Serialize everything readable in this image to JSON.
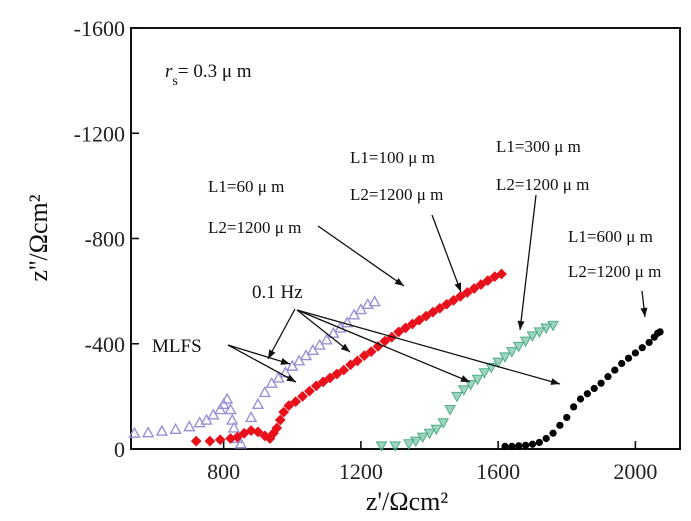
{
  "chart_data": {
    "type": "scatter",
    "xlabel": "z'/Ωcm²",
    "ylabel": "z''/Ωcm²",
    "xlim": [
      530,
      2130
    ],
    "ylim": [
      0,
      -1600
    ],
    "x_ticks": [
      "800",
      "1200",
      "1600",
      "2000"
    ],
    "y_ticks": [
      "-1600",
      "-1200",
      "-800",
      "-400",
      "0"
    ],
    "x_tick_values": [
      800,
      1200,
      1600,
      2000
    ],
    "y_tick_values": [
      -1600,
      -1200,
      -800,
      -400,
      0
    ],
    "grid": false,
    "annotations": {
      "rs": "r",
      "rs_sub": "s",
      "rs_value": "= 0.3 μ m",
      "hz": "0.1 Hz",
      "mlfs": "MLFS",
      "label_sets": [
        {
          "l1": "L1=60 μ m",
          "l2": "L2=1200 μ m"
        },
        {
          "l1": "L1=100 μ m",
          "l2": "L2=1200 μ m"
        },
        {
          "l1": "L1=300 μ m",
          "l2": "L2=1200 μ m"
        },
        {
          "l1": "L1=600 μ m",
          "l2": "L2=1200 μ m"
        }
      ]
    },
    "series": [
      {
        "color": "#9c8fd6",
        "marker": "triangle",
        "points": [
          [
            540,
            -60
          ],
          [
            580,
            -62
          ],
          [
            620,
            -68
          ],
          [
            660,
            -75
          ],
          [
            700,
            -85
          ],
          [
            730,
            -100
          ],
          [
            750,
            -110
          ],
          [
            770,
            -130
          ],
          [
            790,
            -150
          ],
          [
            800,
            -170
          ],
          [
            810,
            -190
          ],
          [
            820,
            -150
          ],
          [
            825,
            -110
          ],
          [
            830,
            -80
          ],
          [
            840,
            -40
          ],
          [
            850,
            -20
          ],
          [
            880,
            -120
          ],
          [
            900,
            -170
          ],
          [
            920,
            -215
          ],
          [
            940,
            -250
          ],
          [
            960,
            -270
          ],
          [
            980,
            -290
          ],
          [
            1000,
            -315
          ],
          [
            1020,
            -335
          ],
          [
            1040,
            -355
          ],
          [
            1060,
            -375
          ],
          [
            1080,
            -395
          ],
          [
            1100,
            -415
          ],
          [
            1120,
            -440
          ],
          [
            1140,
            -460
          ],
          [
            1160,
            -480
          ],
          [
            1180,
            -510
          ],
          [
            1200,
            -530
          ],
          [
            1220,
            -550
          ],
          [
            1240,
            -560
          ]
        ]
      },
      {
        "color": "#e8101a",
        "marker": "square",
        "points": [
          [
            720,
            -30
          ],
          [
            760,
            -30
          ],
          [
            790,
            -35
          ],
          [
            820,
            -40
          ],
          [
            840,
            -45
          ],
          [
            860,
            -60
          ],
          [
            880,
            -70
          ],
          [
            900,
            -65
          ],
          [
            920,
            -50
          ],
          [
            935,
            -40
          ],
          [
            945,
            -60
          ],
          [
            955,
            -80
          ],
          [
            965,
            -110
          ],
          [
            975,
            -140
          ],
          [
            990,
            -165
          ],
          [
            1010,
            -180
          ],
          [
            1030,
            -200
          ],
          [
            1050,
            -220
          ],
          [
            1070,
            -240
          ],
          [
            1090,
            -255
          ],
          [
            1110,
            -270
          ],
          [
            1130,
            -285
          ],
          [
            1150,
            -300
          ],
          [
            1170,
            -320
          ],
          [
            1190,
            -335
          ],
          [
            1210,
            -355
          ],
          [
            1230,
            -370
          ],
          [
            1250,
            -390
          ],
          [
            1270,
            -410
          ],
          [
            1290,
            -425
          ],
          [
            1310,
            -445
          ],
          [
            1330,
            -460
          ],
          [
            1350,
            -475
          ],
          [
            1370,
            -490
          ],
          [
            1390,
            -505
          ],
          [
            1410,
            -520
          ],
          [
            1430,
            -535
          ],
          [
            1450,
            -550
          ],
          [
            1470,
            -565
          ],
          [
            1490,
            -580
          ],
          [
            1510,
            -595
          ],
          [
            1530,
            -610
          ],
          [
            1550,
            -625
          ],
          [
            1570,
            -640
          ],
          [
            1590,
            -655
          ],
          [
            1610,
            -665
          ]
        ]
      },
      {
        "color": "#4fae88",
        "marker": "triangle-down",
        "points": [
          [
            1260,
            -12
          ],
          [
            1300,
            -12
          ],
          [
            1340,
            -20
          ],
          [
            1360,
            -30
          ],
          [
            1380,
            -45
          ],
          [
            1400,
            -60
          ],
          [
            1420,
            -75
          ],
          [
            1440,
            -100
          ],
          [
            1460,
            -150
          ],
          [
            1480,
            -200
          ],
          [
            1500,
            -225
          ],
          [
            1520,
            -245
          ],
          [
            1540,
            -265
          ],
          [
            1560,
            -290
          ],
          [
            1580,
            -310
          ],
          [
            1600,
            -330
          ],
          [
            1620,
            -350
          ],
          [
            1640,
            -370
          ],
          [
            1660,
            -390
          ],
          [
            1680,
            -410
          ],
          [
            1700,
            -430
          ],
          [
            1720,
            -445
          ],
          [
            1740,
            -460
          ],
          [
            1760,
            -470
          ]
        ]
      },
      {
        "color": "#000000",
        "marker": "circle",
        "points": [
          [
            1620,
            -10
          ],
          [
            1640,
            -10
          ],
          [
            1660,
            -12
          ],
          [
            1680,
            -14
          ],
          [
            1700,
            -18
          ],
          [
            1720,
            -25
          ],
          [
            1740,
            -40
          ],
          [
            1760,
            -60
          ],
          [
            1780,
            -90
          ],
          [
            1800,
            -120
          ],
          [
            1820,
            -160
          ],
          [
            1840,
            -190
          ],
          [
            1860,
            -210
          ],
          [
            1880,
            -230
          ],
          [
            1900,
            -250
          ],
          [
            1920,
            -275
          ],
          [
            1940,
            -300
          ],
          [
            1960,
            -325
          ],
          [
            1980,
            -345
          ],
          [
            2000,
            -365
          ],
          [
            2020,
            -385
          ],
          [
            2040,
            -405
          ],
          [
            2055,
            -425
          ],
          [
            2065,
            -440
          ],
          [
            2072,
            -445
          ]
        ]
      }
    ]
  }
}
